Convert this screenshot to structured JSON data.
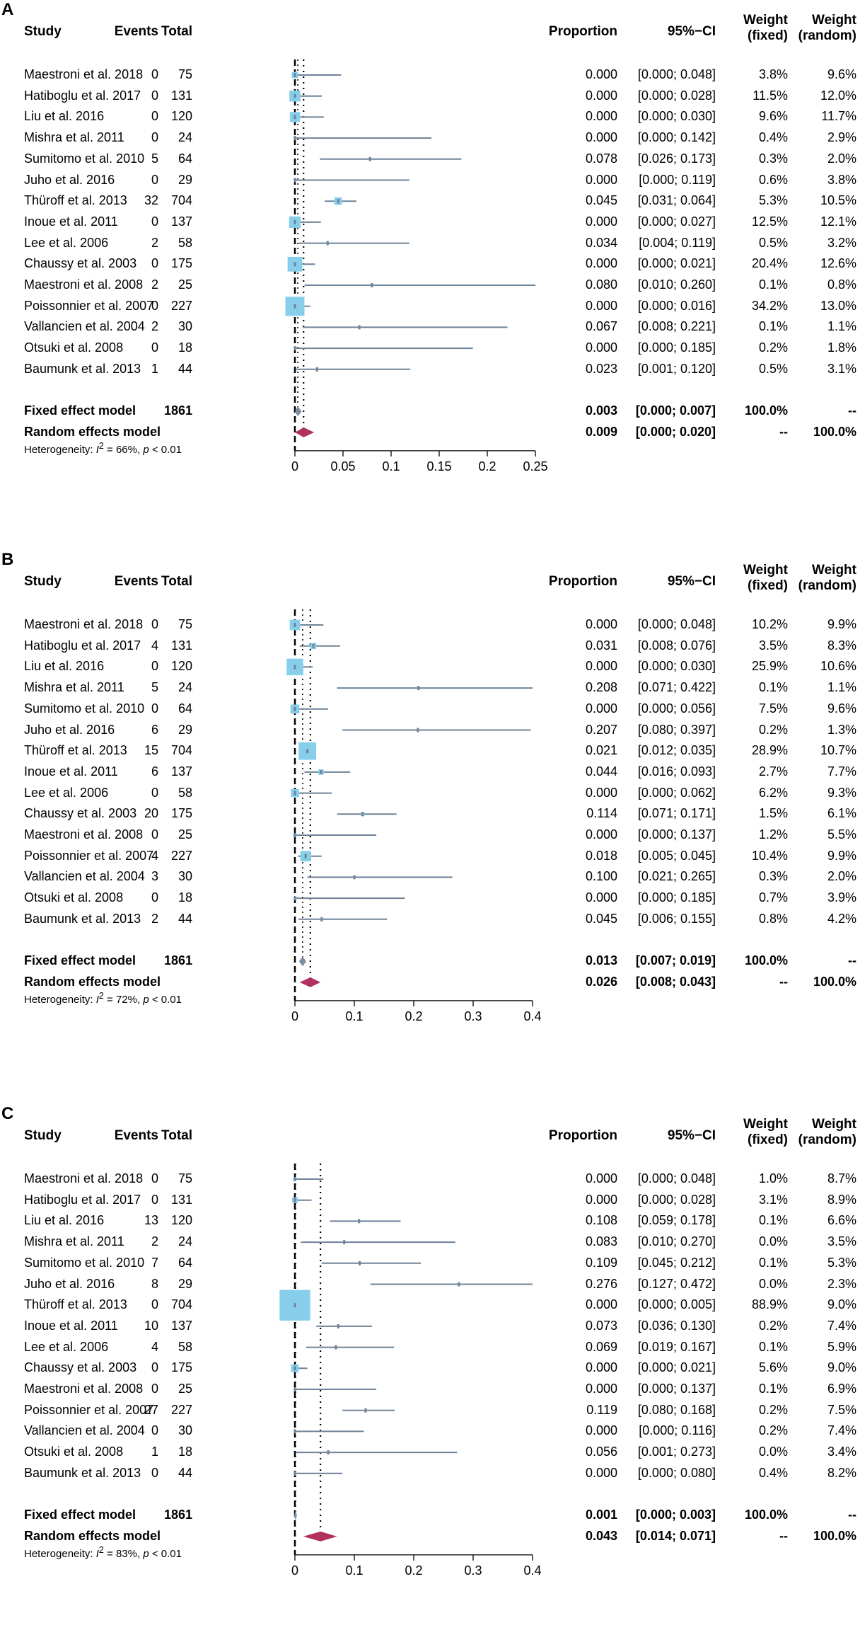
{
  "headers": {
    "study": "Study",
    "events": "Events",
    "total": "Total",
    "proportion": "Proportion",
    "ci": "95%−CI",
    "weight": "Weight",
    "fixed": "(fixed)",
    "random": "(random)"
  },
  "colors": {
    "box": "#87CEEB",
    "line": "#6E8398",
    "diamond_fixed": "#7B8EA0",
    "diamond_random": "#B03060"
  },
  "chart_data": [
    {
      "type": "forest",
      "label": "A",
      "xlim": [
        0,
        0.25
      ],
      "ticks": [
        0,
        0.05,
        0.1,
        0.15,
        0.2,
        0.25
      ],
      "tick_labels": [
        "0",
        "0.05",
        "0.1",
        "0.15",
        "0.2",
        "0.25"
      ],
      "fixed_estimate": 0.003,
      "random_estimate": 0.009,
      "studies": [
        {
          "study": "Maestroni et al. 2018",
          "events": "0",
          "total": "75",
          "prop": "0.000",
          "ci": "[0.000; 0.048]",
          "wf": "3.8%",
          "wr": "9.6%",
          "est": 0.0,
          "lo": 0.0,
          "hi": 0.048,
          "w": 3.8
        },
        {
          "study": "Hatiboglu et al. 2017",
          "events": "0",
          "total": "131",
          "prop": "0.000",
          "ci": "[0.000; 0.028]",
          "wf": "11.5%",
          "wr": "12.0%",
          "est": 0.0,
          "lo": 0.0,
          "hi": 0.028,
          "w": 11.5
        },
        {
          "study": "Liu et al. 2016",
          "events": "0",
          "total": "120",
          "prop": "0.000",
          "ci": "[0.000; 0.030]",
          "wf": "9.6%",
          "wr": "11.7%",
          "est": 0.0,
          "lo": 0.0,
          "hi": 0.03,
          "w": 9.6
        },
        {
          "study": "Mishra et al. 2011",
          "events": "0",
          "total": "24",
          "prop": "0.000",
          "ci": "[0.000; 0.142]",
          "wf": "0.4%",
          "wr": "2.9%",
          "est": 0.0,
          "lo": 0.0,
          "hi": 0.142,
          "w": 0.4
        },
        {
          "study": "Sumitomo et al. 2010",
          "events": "5",
          "total": "64",
          "prop": "0.078",
          "ci": "[0.026; 0.173]",
          "wf": "0.3%",
          "wr": "2.0%",
          "est": 0.078,
          "lo": 0.026,
          "hi": 0.173,
          "w": 0.3
        },
        {
          "study": "Juho et al. 2016",
          "events": "0",
          "total": "29",
          "prop": "0.000",
          "ci": "[0.000; 0.119]",
          "wf": "0.6%",
          "wr": "3.8%",
          "est": 0.0,
          "lo": 0.0,
          "hi": 0.119,
          "w": 0.6
        },
        {
          "study": "Thüroff et al. 2013",
          "events": "32",
          "total": "704",
          "prop": "0.045",
          "ci": "[0.031; 0.064]",
          "wf": "5.3%",
          "wr": "10.5%",
          "est": 0.045,
          "lo": 0.031,
          "hi": 0.064,
          "w": 5.3
        },
        {
          "study": "Inoue et al. 2011",
          "events": "0",
          "total": "137",
          "prop": "0.000",
          "ci": "[0.000; 0.027]",
          "wf": "12.5%",
          "wr": "12.1%",
          "est": 0.0,
          "lo": 0.0,
          "hi": 0.027,
          "w": 12.5
        },
        {
          "study": "Lee et al. 2006",
          "events": "2",
          "total": "58",
          "prop": "0.034",
          "ci": "[0.004; 0.119]",
          "wf": "0.5%",
          "wr": "3.2%",
          "est": 0.034,
          "lo": 0.004,
          "hi": 0.119,
          "w": 0.5
        },
        {
          "study": "Chaussy et al. 2003",
          "events": "0",
          "total": "175",
          "prop": "0.000",
          "ci": "[0.000; 0.021]",
          "wf": "20.4%",
          "wr": "12.6%",
          "est": 0.0,
          "lo": 0.0,
          "hi": 0.021,
          "w": 20.4
        },
        {
          "study": "Maestroni et al. 2008",
          "events": "2",
          "total": "25",
          "prop": "0.080",
          "ci": "[0.010; 0.260]",
          "wf": "0.1%",
          "wr": "0.8%",
          "est": 0.08,
          "lo": 0.01,
          "hi": 0.26,
          "w": 0.1
        },
        {
          "study": "Poissonnier et al. 2007",
          "events": "0",
          "total": "227",
          "prop": "0.000",
          "ci": "[0.000; 0.016]",
          "wf": "34.2%",
          "wr": "13.0%",
          "est": 0.0,
          "lo": 0.0,
          "hi": 0.016,
          "w": 34.2
        },
        {
          "study": "Vallancien et al. 2004",
          "events": "2",
          "total": "30",
          "prop": "0.067",
          "ci": "[0.008; 0.221]",
          "wf": "0.1%",
          "wr": "1.1%",
          "est": 0.067,
          "lo": 0.008,
          "hi": 0.221,
          "w": 0.1
        },
        {
          "study": "Otsuki et al. 2008",
          "events": "0",
          "total": "18",
          "prop": "0.000",
          "ci": "[0.000; 0.185]",
          "wf": "0.2%",
          "wr": "1.8%",
          "est": 0.0,
          "lo": 0.0,
          "hi": 0.185,
          "w": 0.2
        },
        {
          "study": "Baumunk et al. 2013",
          "events": "1",
          "total": "44",
          "prop": "0.023",
          "ci": "[0.001; 0.120]",
          "wf": "0.5%",
          "wr": "3.1%",
          "est": 0.023,
          "lo": 0.001,
          "hi": 0.12,
          "w": 0.5
        }
      ],
      "fixed": {
        "label": "Fixed effect model",
        "total": "1861",
        "prop": "0.003",
        "ci": "[0.000; 0.007]",
        "wf": "100.0%",
        "wr": "--",
        "est": 0.003,
        "lo": 0.0,
        "hi": 0.007
      },
      "random": {
        "label": "Random effects model",
        "prop": "0.009",
        "ci": "[0.000; 0.020]",
        "wf": "--",
        "wr": "100.0%",
        "est": 0.009,
        "lo": 0.0,
        "hi": 0.02
      },
      "heterogeneity": {
        "pre": "Heterogeneity: ",
        "i": "I",
        "sup": "2",
        "mid": " = 66%, ",
        "p": "p",
        "post": " < 0.01"
      }
    },
    {
      "type": "forest",
      "label": "B",
      "xlim": [
        0,
        0.4
      ],
      "ticks": [
        0,
        0.1,
        0.2,
        0.3,
        0.4
      ],
      "tick_labels": [
        "0",
        "0.1",
        "0.2",
        "0.3",
        "0.4"
      ],
      "fixed_estimate": 0.013,
      "random_estimate": 0.026,
      "studies": [
        {
          "study": "Maestroni et al. 2018",
          "events": "0",
          "total": "75",
          "prop": "0.000",
          "ci": "[0.000; 0.048]",
          "wf": "10.2%",
          "wr": "9.9%",
          "est": 0.0,
          "lo": 0.0,
          "hi": 0.048,
          "w": 10.2
        },
        {
          "study": "Hatiboglu et al. 2017",
          "events": "4",
          "total": "131",
          "prop": "0.031",
          "ci": "[0.008; 0.076]",
          "wf": "3.5%",
          "wr": "8.3%",
          "est": 0.031,
          "lo": 0.008,
          "hi": 0.076,
          "w": 3.5
        },
        {
          "study": "Liu et al. 2016",
          "events": "0",
          "total": "120",
          "prop": "0.000",
          "ci": "[0.000; 0.030]",
          "wf": "25.9%",
          "wr": "10.6%",
          "est": 0.0,
          "lo": 0.0,
          "hi": 0.03,
          "w": 25.9
        },
        {
          "study": "Mishra et al. 2011",
          "events": "5",
          "total": "24",
          "prop": "0.208",
          "ci": "[0.071; 0.422]",
          "wf": "0.1%",
          "wr": "1.1%",
          "est": 0.208,
          "lo": 0.071,
          "hi": 0.422,
          "w": 0.1
        },
        {
          "study": "Sumitomo et al. 2010",
          "events": "0",
          "total": "64",
          "prop": "0.000",
          "ci": "[0.000; 0.056]",
          "wf": "7.5%",
          "wr": "9.6%",
          "est": 0.0,
          "lo": 0.0,
          "hi": 0.056,
          "w": 7.5
        },
        {
          "study": "Juho et al. 2016",
          "events": "6",
          "total": "29",
          "prop": "0.207",
          "ci": "[0.080; 0.397]",
          "wf": "0.2%",
          "wr": "1.3%",
          "est": 0.207,
          "lo": 0.08,
          "hi": 0.397,
          "w": 0.2
        },
        {
          "study": "Thüroff et al. 2013",
          "events": "15",
          "total": "704",
          "prop": "0.021",
          "ci": "[0.012; 0.035]",
          "wf": "28.9%",
          "wr": "10.7%",
          "est": 0.021,
          "lo": 0.012,
          "hi": 0.035,
          "w": 28.9
        },
        {
          "study": "Inoue et al. 2011",
          "events": "6",
          "total": "137",
          "prop": "0.044",
          "ci": "[0.016; 0.093]",
          "wf": "2.7%",
          "wr": "7.7%",
          "est": 0.044,
          "lo": 0.016,
          "hi": 0.093,
          "w": 2.7
        },
        {
          "study": "Lee et al. 2006",
          "events": "0",
          "total": "58",
          "prop": "0.000",
          "ci": "[0.000; 0.062]",
          "wf": "6.2%",
          "wr": "9.3%",
          "est": 0.0,
          "lo": 0.0,
          "hi": 0.062,
          "w": 6.2
        },
        {
          "study": "Chaussy et al. 2003",
          "events": "20",
          "total": "175",
          "prop": "0.114",
          "ci": "[0.071; 0.171]",
          "wf": "1.5%",
          "wr": "6.1%",
          "est": 0.114,
          "lo": 0.071,
          "hi": 0.171,
          "w": 1.5
        },
        {
          "study": "Maestroni et al. 2008",
          "events": "0",
          "total": "25",
          "prop": "0.000",
          "ci": "[0.000; 0.137]",
          "wf": "1.2%",
          "wr": "5.5%",
          "est": 0.0,
          "lo": 0.0,
          "hi": 0.137,
          "w": 1.2
        },
        {
          "study": "Poissonnier et al. 2007",
          "events": "4",
          "total": "227",
          "prop": "0.018",
          "ci": "[0.005; 0.045]",
          "wf": "10.4%",
          "wr": "9.9%",
          "est": 0.018,
          "lo": 0.005,
          "hi": 0.045,
          "w": 10.4
        },
        {
          "study": "Vallancien et al. 2004",
          "events": "3",
          "total": "30",
          "prop": "0.100",
          "ci": "[0.021; 0.265]",
          "wf": "0.3%",
          "wr": "2.0%",
          "est": 0.1,
          "lo": 0.021,
          "hi": 0.265,
          "w": 0.3
        },
        {
          "study": "Otsuki et al. 2008",
          "events": "0",
          "total": "18",
          "prop": "0.000",
          "ci": "[0.000; 0.185]",
          "wf": "0.7%",
          "wr": "3.9%",
          "est": 0.0,
          "lo": 0.0,
          "hi": 0.185,
          "w": 0.7
        },
        {
          "study": "Baumunk et al. 2013",
          "events": "2",
          "total": "44",
          "prop": "0.045",
          "ci": "[0.006; 0.155]",
          "wf": "0.8%",
          "wr": "4.2%",
          "est": 0.045,
          "lo": 0.006,
          "hi": 0.155,
          "w": 0.8
        }
      ],
      "fixed": {
        "label": "Fixed effect model",
        "total": "1861",
        "prop": "0.013",
        "ci": "[0.007; 0.019]",
        "wf": "100.0%",
        "wr": "--",
        "est": 0.013,
        "lo": 0.007,
        "hi": 0.019
      },
      "random": {
        "label": "Random effects model",
        "prop": "0.026",
        "ci": "[0.008; 0.043]",
        "wf": "--",
        "wr": "100.0%",
        "est": 0.026,
        "lo": 0.008,
        "hi": 0.043
      },
      "heterogeneity": {
        "pre": "Heterogeneity: ",
        "i": "I",
        "sup": "2",
        "mid": " = 72%, ",
        "p": "p",
        "post": " < 0.01"
      }
    },
    {
      "type": "forest",
      "label": "C",
      "xlim": [
        0,
        0.4
      ],
      "ticks": [
        0,
        0.1,
        0.2,
        0.3,
        0.4
      ],
      "tick_labels": [
        "0",
        "0.1",
        "0.2",
        "0.3",
        "0.4"
      ],
      "fixed_estimate": 0.001,
      "random_estimate": 0.043,
      "studies": [
        {
          "study": "Maestroni et al. 2018",
          "events": "0",
          "total": "75",
          "prop": "0.000",
          "ci": "[0.000; 0.048]",
          "wf": "1.0%",
          "wr": "8.7%",
          "est": 0.0,
          "lo": 0.0,
          "hi": 0.048,
          "w": 1.0
        },
        {
          "study": "Hatiboglu et al. 2017",
          "events": "0",
          "total": "131",
          "prop": "0.000",
          "ci": "[0.000; 0.028]",
          "wf": "3.1%",
          "wr": "8.9%",
          "est": 0.0,
          "lo": 0.0,
          "hi": 0.028,
          "w": 3.1
        },
        {
          "study": "Liu et al. 2016",
          "events": "13",
          "total": "120",
          "prop": "0.108",
          "ci": "[0.059; 0.178]",
          "wf": "0.1%",
          "wr": "6.6%",
          "est": 0.108,
          "lo": 0.059,
          "hi": 0.178,
          "w": 0.1
        },
        {
          "study": "Mishra et al. 2011",
          "events": "2",
          "total": "24",
          "prop": "0.083",
          "ci": "[0.010; 0.270]",
          "wf": "0.0%",
          "wr": "3.5%",
          "est": 0.083,
          "lo": 0.01,
          "hi": 0.27,
          "w": 0.0
        },
        {
          "study": "Sumitomo et al. 2010",
          "events": "7",
          "total": "64",
          "prop": "0.109",
          "ci": "[0.045; 0.212]",
          "wf": "0.1%",
          "wr": "5.3%",
          "est": 0.109,
          "lo": 0.045,
          "hi": 0.212,
          "w": 0.1
        },
        {
          "study": "Juho et al. 2016",
          "events": "8",
          "total": "29",
          "prop": "0.276",
          "ci": "[0.127; 0.472]",
          "wf": "0.0%",
          "wr": "2.3%",
          "est": 0.276,
          "lo": 0.127,
          "hi": 0.472,
          "w": 0.0
        },
        {
          "study": "Thüroff et al. 2013",
          "events": "0",
          "total": "704",
          "prop": "0.000",
          "ci": "[0.000; 0.005]",
          "wf": "88.9%",
          "wr": "9.0%",
          "est": 0.0,
          "lo": 0.0,
          "hi": 0.005,
          "w": 88.9
        },
        {
          "study": "Inoue et al. 2011",
          "events": "10",
          "total": "137",
          "prop": "0.073",
          "ci": "[0.036; 0.130]",
          "wf": "0.2%",
          "wr": "7.4%",
          "est": 0.073,
          "lo": 0.036,
          "hi": 0.13,
          "w": 0.2
        },
        {
          "study": "Lee et al. 2006",
          "events": "4",
          "total": "58",
          "prop": "0.069",
          "ci": "[0.019; 0.167]",
          "wf": "0.1%",
          "wr": "5.9%",
          "est": 0.069,
          "lo": 0.019,
          "hi": 0.167,
          "w": 0.1
        },
        {
          "study": "Chaussy et al. 2003",
          "events": "0",
          "total": "175",
          "prop": "0.000",
          "ci": "[0.000; 0.021]",
          "wf": "5.6%",
          "wr": "9.0%",
          "est": 0.0,
          "lo": 0.0,
          "hi": 0.021,
          "w": 5.6
        },
        {
          "study": "Maestroni et al. 2008",
          "events": "0",
          "total": "25",
          "prop": "0.000",
          "ci": "[0.000; 0.137]",
          "wf": "0.1%",
          "wr": "6.9%",
          "est": 0.0,
          "lo": 0.0,
          "hi": 0.137,
          "w": 0.1
        },
        {
          "study": "Poissonnier et al. 2007",
          "events": "27",
          "total": "227",
          "prop": "0.119",
          "ci": "[0.080; 0.168]",
          "wf": "0.2%",
          "wr": "7.5%",
          "est": 0.119,
          "lo": 0.08,
          "hi": 0.168,
          "w": 0.2
        },
        {
          "study": "Vallancien et al. 2004",
          "events": "0",
          "total": "30",
          "prop": "0.000",
          "ci": "[0.000; 0.116]",
          "wf": "0.2%",
          "wr": "7.4%",
          "est": 0.0,
          "lo": 0.0,
          "hi": 0.116,
          "w": 0.2
        },
        {
          "study": "Otsuki et al. 2008",
          "events": "1",
          "total": "18",
          "prop": "0.056",
          "ci": "[0.001; 0.273]",
          "wf": "0.0%",
          "wr": "3.4%",
          "est": 0.056,
          "lo": 0.001,
          "hi": 0.273,
          "w": 0.0
        },
        {
          "study": "Baumunk et al. 2013",
          "events": "0",
          "total": "44",
          "prop": "0.000",
          "ci": "[0.000; 0.080]",
          "wf": "0.4%",
          "wr": "8.2%",
          "est": 0.0,
          "lo": 0.0,
          "hi": 0.08,
          "w": 0.4
        }
      ],
      "fixed": {
        "label": "Fixed effect model",
        "total": "1861",
        "prop": "0.001",
        "ci": "[0.000; 0.003]",
        "wf": "100.0%",
        "wr": "--",
        "est": 0.001,
        "lo": 0.0,
        "hi": 0.003
      },
      "random": {
        "label": "Random effects model",
        "prop": "0.043",
        "ci": "[0.014; 0.071]",
        "wf": "--",
        "wr": "100.0%",
        "est": 0.043,
        "lo": 0.014,
        "hi": 0.071
      },
      "heterogeneity": {
        "pre": "Heterogeneity: ",
        "i": "I",
        "sup": "2",
        "mid": " = 83%, ",
        "p": "p",
        "post": " < 0.01"
      }
    }
  ]
}
